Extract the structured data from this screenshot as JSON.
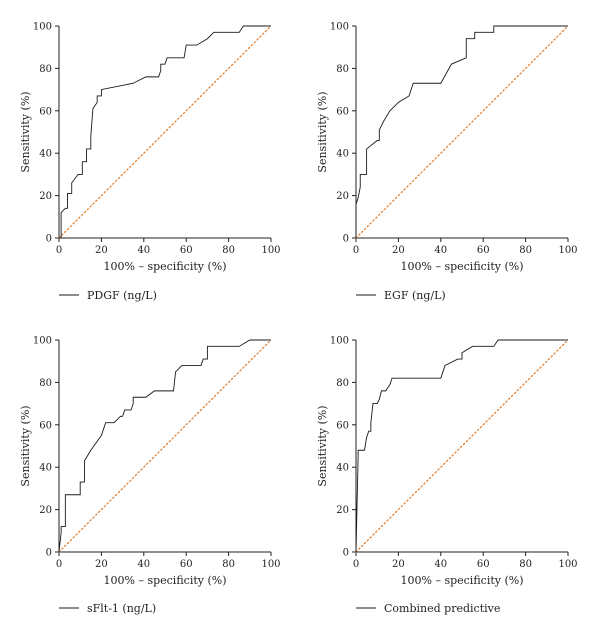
{
  "colors": {
    "roc": "#1a1a1a",
    "reference": "#e07b2a",
    "axis": "#222222"
  },
  "chart_data": [
    {
      "type": "line",
      "xlabel": "100% – specificity (%)",
      "ylabel": "Sensitivity (%)",
      "xlim": [
        0,
        100
      ],
      "ylim": [
        0,
        100
      ],
      "xticks": [
        "0",
        "20",
        "40",
        "60",
        "80",
        "100"
      ],
      "yticks": [
        "0",
        "20",
        "40",
        "60",
        "80",
        "100"
      ],
      "grid": false,
      "legend_position": "bottom-left",
      "series": [
        {
          "name": "PDGF (ng/L)",
          "x": [
            0,
            1,
            1,
            3,
            4,
            4,
            5,
            6,
            6,
            9,
            11,
            11,
            12,
            13,
            13,
            14,
            15,
            15,
            16,
            18,
            18,
            19,
            20,
            20,
            25,
            35,
            41,
            45,
            45,
            46,
            47,
            48,
            48,
            49,
            50,
            51,
            52,
            58,
            59,
            60,
            63,
            65,
            70,
            73,
            85,
            87,
            95,
            100
          ],
          "y": [
            0,
            0,
            12,
            14,
            14,
            21,
            21,
            21,
            26,
            30,
            30,
            36,
            36,
            36,
            42,
            42,
            42,
            48,
            61,
            64,
            67,
            67,
            67,
            70,
            71,
            73,
            76,
            76,
            76,
            76,
            76,
            79,
            82,
            82,
            82,
            85,
            85,
            85,
            85,
            91,
            91,
            91,
            94,
            97,
            97,
            100,
            100,
            100
          ]
        },
        {
          "name": "reference",
          "x": [
            0,
            100
          ],
          "y": [
            0,
            100
          ]
        }
      ]
    },
    {
      "type": "line",
      "xlabel": "100% – specificity (%)",
      "ylabel": "Sensitivity (%)",
      "xlim": [
        0,
        100
      ],
      "ylim": [
        0,
        100
      ],
      "xticks": [
        "0",
        "20",
        "40",
        "60",
        "80",
        "100"
      ],
      "yticks": [
        "0",
        "20",
        "40",
        "60",
        "80",
        "100"
      ],
      "grid": false,
      "legend_position": "bottom-left",
      "series": [
        {
          "name": "EGF (ng/L)",
          "x": [
            0,
            0,
            1,
            2,
            2,
            5,
            5,
            10,
            11,
            11,
            13,
            16,
            20,
            25,
            26,
            27,
            29,
            30,
            35,
            40,
            45,
            52,
            52,
            56,
            56,
            62,
            65,
            65,
            70,
            100
          ],
          "y": [
            0,
            16,
            19,
            24,
            30,
            30,
            42,
            46,
            46,
            51,
            55,
            60,
            64,
            67,
            70,
            73,
            73,
            73,
            73,
            73,
            82,
            85,
            94,
            94,
            97,
            97,
            97,
            100,
            100,
            100
          ]
        },
        {
          "name": "reference",
          "x": [
            0,
            100
          ],
          "y": [
            0,
            100
          ]
        }
      ]
    },
    {
      "type": "line",
      "xlabel": "100% – specificity (%)",
      "ylabel": "Sensitivity (%)",
      "xlim": [
        0,
        100
      ],
      "ylim": [
        0,
        100
      ],
      "xticks": [
        "0",
        "20",
        "40",
        "60",
        "80",
        "100"
      ],
      "yticks": [
        "0",
        "20",
        "40",
        "60",
        "80",
        "100"
      ],
      "grid": false,
      "legend_position": "bottom-left",
      "series": [
        {
          "name": "sFlt-1 (ng/L)",
          "x": [
            0,
            1,
            1,
            3,
            3,
            4,
            9,
            10,
            10,
            12,
            12,
            15,
            20,
            22,
            23,
            26,
            29,
            30,
            30,
            31,
            34,
            35,
            35,
            38,
            41,
            45,
            50,
            52,
            54,
            55,
            58,
            62,
            67,
            68,
            70,
            70,
            75,
            80,
            85,
            90,
            95,
            100
          ],
          "y": [
            0,
            9,
            12,
            12,
            27,
            27,
            27,
            27,
            33,
            33,
            43,
            48,
            55,
            61,
            61,
            61,
            64,
            64,
            64,
            67,
            67,
            70,
            73,
            73,
            73,
            76,
            76,
            76,
            76,
            85,
            88,
            88,
            88,
            91,
            91,
            97,
            97,
            97,
            97,
            100,
            100,
            100
          ]
        },
        {
          "name": "reference",
          "x": [
            0,
            100
          ],
          "y": [
            0,
            100
          ]
        }
      ]
    },
    {
      "type": "line",
      "xlabel": "100% – specificity (%)",
      "ylabel": "Sensitivity (%)",
      "xlim": [
        0,
        100
      ],
      "ylim": [
        0,
        100
      ],
      "xticks": [
        "0",
        "20",
        "40",
        "60",
        "80",
        "100"
      ],
      "yticks": [
        "0",
        "20",
        "40",
        "60",
        "80",
        "100"
      ],
      "grid": false,
      "legend_position": "bottom-left",
      "series": [
        {
          "name": "Combined predictive",
          "x": [
            0,
            1,
            1,
            3,
            4,
            5,
            6,
            7,
            7,
            8,
            10,
            11,
            12,
            13,
            14,
            16,
            17,
            20,
            40,
            42,
            42,
            48,
            50,
            50,
            55,
            57,
            65,
            67,
            70,
            100
          ],
          "y": [
            0,
            45,
            48,
            48,
            48,
            54,
            57,
            57,
            61,
            70,
            70,
            72,
            76,
            76,
            76,
            79,
            82,
            82,
            82,
            88,
            88,
            91,
            91,
            94,
            97,
            97,
            97,
            100,
            100,
            100
          ]
        },
        {
          "name": "reference",
          "x": [
            0,
            100
          ],
          "y": [
            0,
            100
          ]
        }
      ]
    }
  ]
}
